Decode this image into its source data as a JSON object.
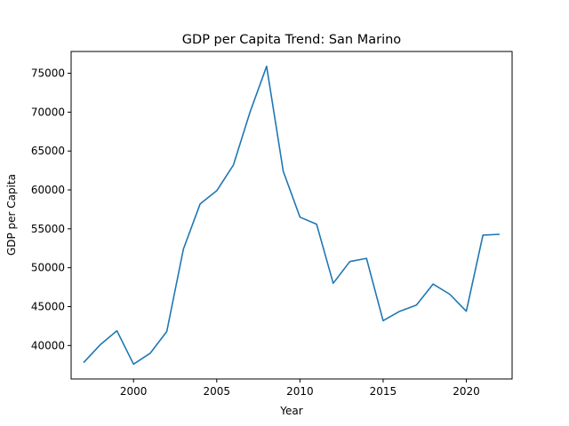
{
  "chart_data": {
    "type": "line",
    "title": "GDP per Capita Trend: San Marino",
    "xlabel": "Year",
    "ylabel": "GDP per Capita",
    "xlim": [
      1996.25,
      2022.75
    ],
    "ylim": [
      35700,
      77800
    ],
    "x_ticks": [
      2000,
      2005,
      2010,
      2015,
      2020
    ],
    "x_tick_labels": [
      "2000",
      "2005",
      "2010",
      "2015",
      "2020"
    ],
    "y_ticks": [
      40000,
      45000,
      50000,
      55000,
      60000,
      65000,
      70000,
      75000
    ],
    "y_tick_labels": [
      "40000",
      "45000",
      "50000",
      "55000",
      "60000",
      "65000",
      "70000",
      "75000"
    ],
    "grid": false,
    "line_color": "#1f77b4",
    "series": [
      {
        "x": [
          1997,
          1998,
          1999,
          2000,
          2001,
          2002,
          2003,
          2004,
          2005,
          2006,
          2007,
          2008,
          2009,
          2010,
          2011,
          2012,
          2013,
          2014,
          2015,
          2016,
          2017,
          2018,
          2019,
          2020,
          2021,
          2022
        ],
        "values": [
          37800,
          40100,
          41900,
          37600,
          39000,
          41800,
          52400,
          58200,
          59900,
          63200,
          70000,
          75900,
          62400,
          56500,
          55600,
          48000,
          50800,
          51200,
          43200,
          44400,
          45200,
          47900,
          46600,
          44400,
          54200,
          54300
        ]
      }
    ]
  }
}
